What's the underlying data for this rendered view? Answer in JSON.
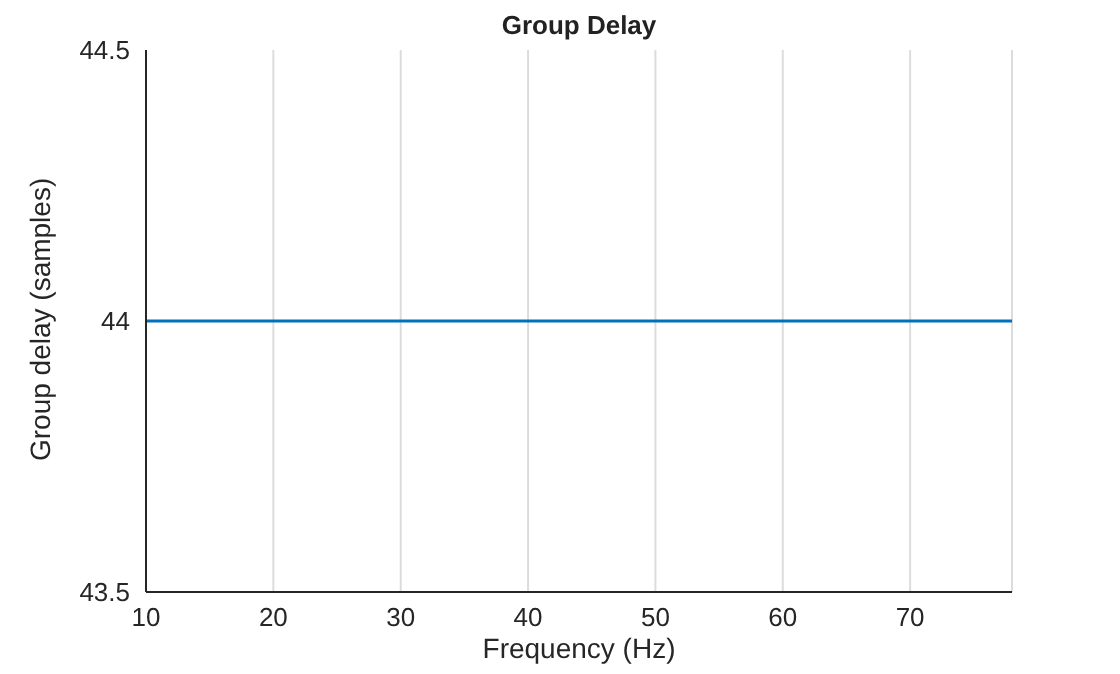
{
  "chart_data": {
    "type": "line",
    "title": "Group Delay",
    "xlabel": "Frequency (Hz)",
    "ylabel": "Group delay (samples)",
    "x": [
      10,
      78
    ],
    "series": [
      {
        "color": "#0072bd",
        "values": [
          44,
          44
        ]
      }
    ],
    "xlim": [
      10,
      78
    ],
    "xticks": [
      10,
      20,
      30,
      40,
      50,
      60,
      70
    ],
    "ylim": [
      43.5,
      44.5
    ],
    "yticks": [
      43.5,
      44,
      44.5
    ],
    "grid": "x",
    "legend": false,
    "marker": "none",
    "line_style": "solid"
  }
}
